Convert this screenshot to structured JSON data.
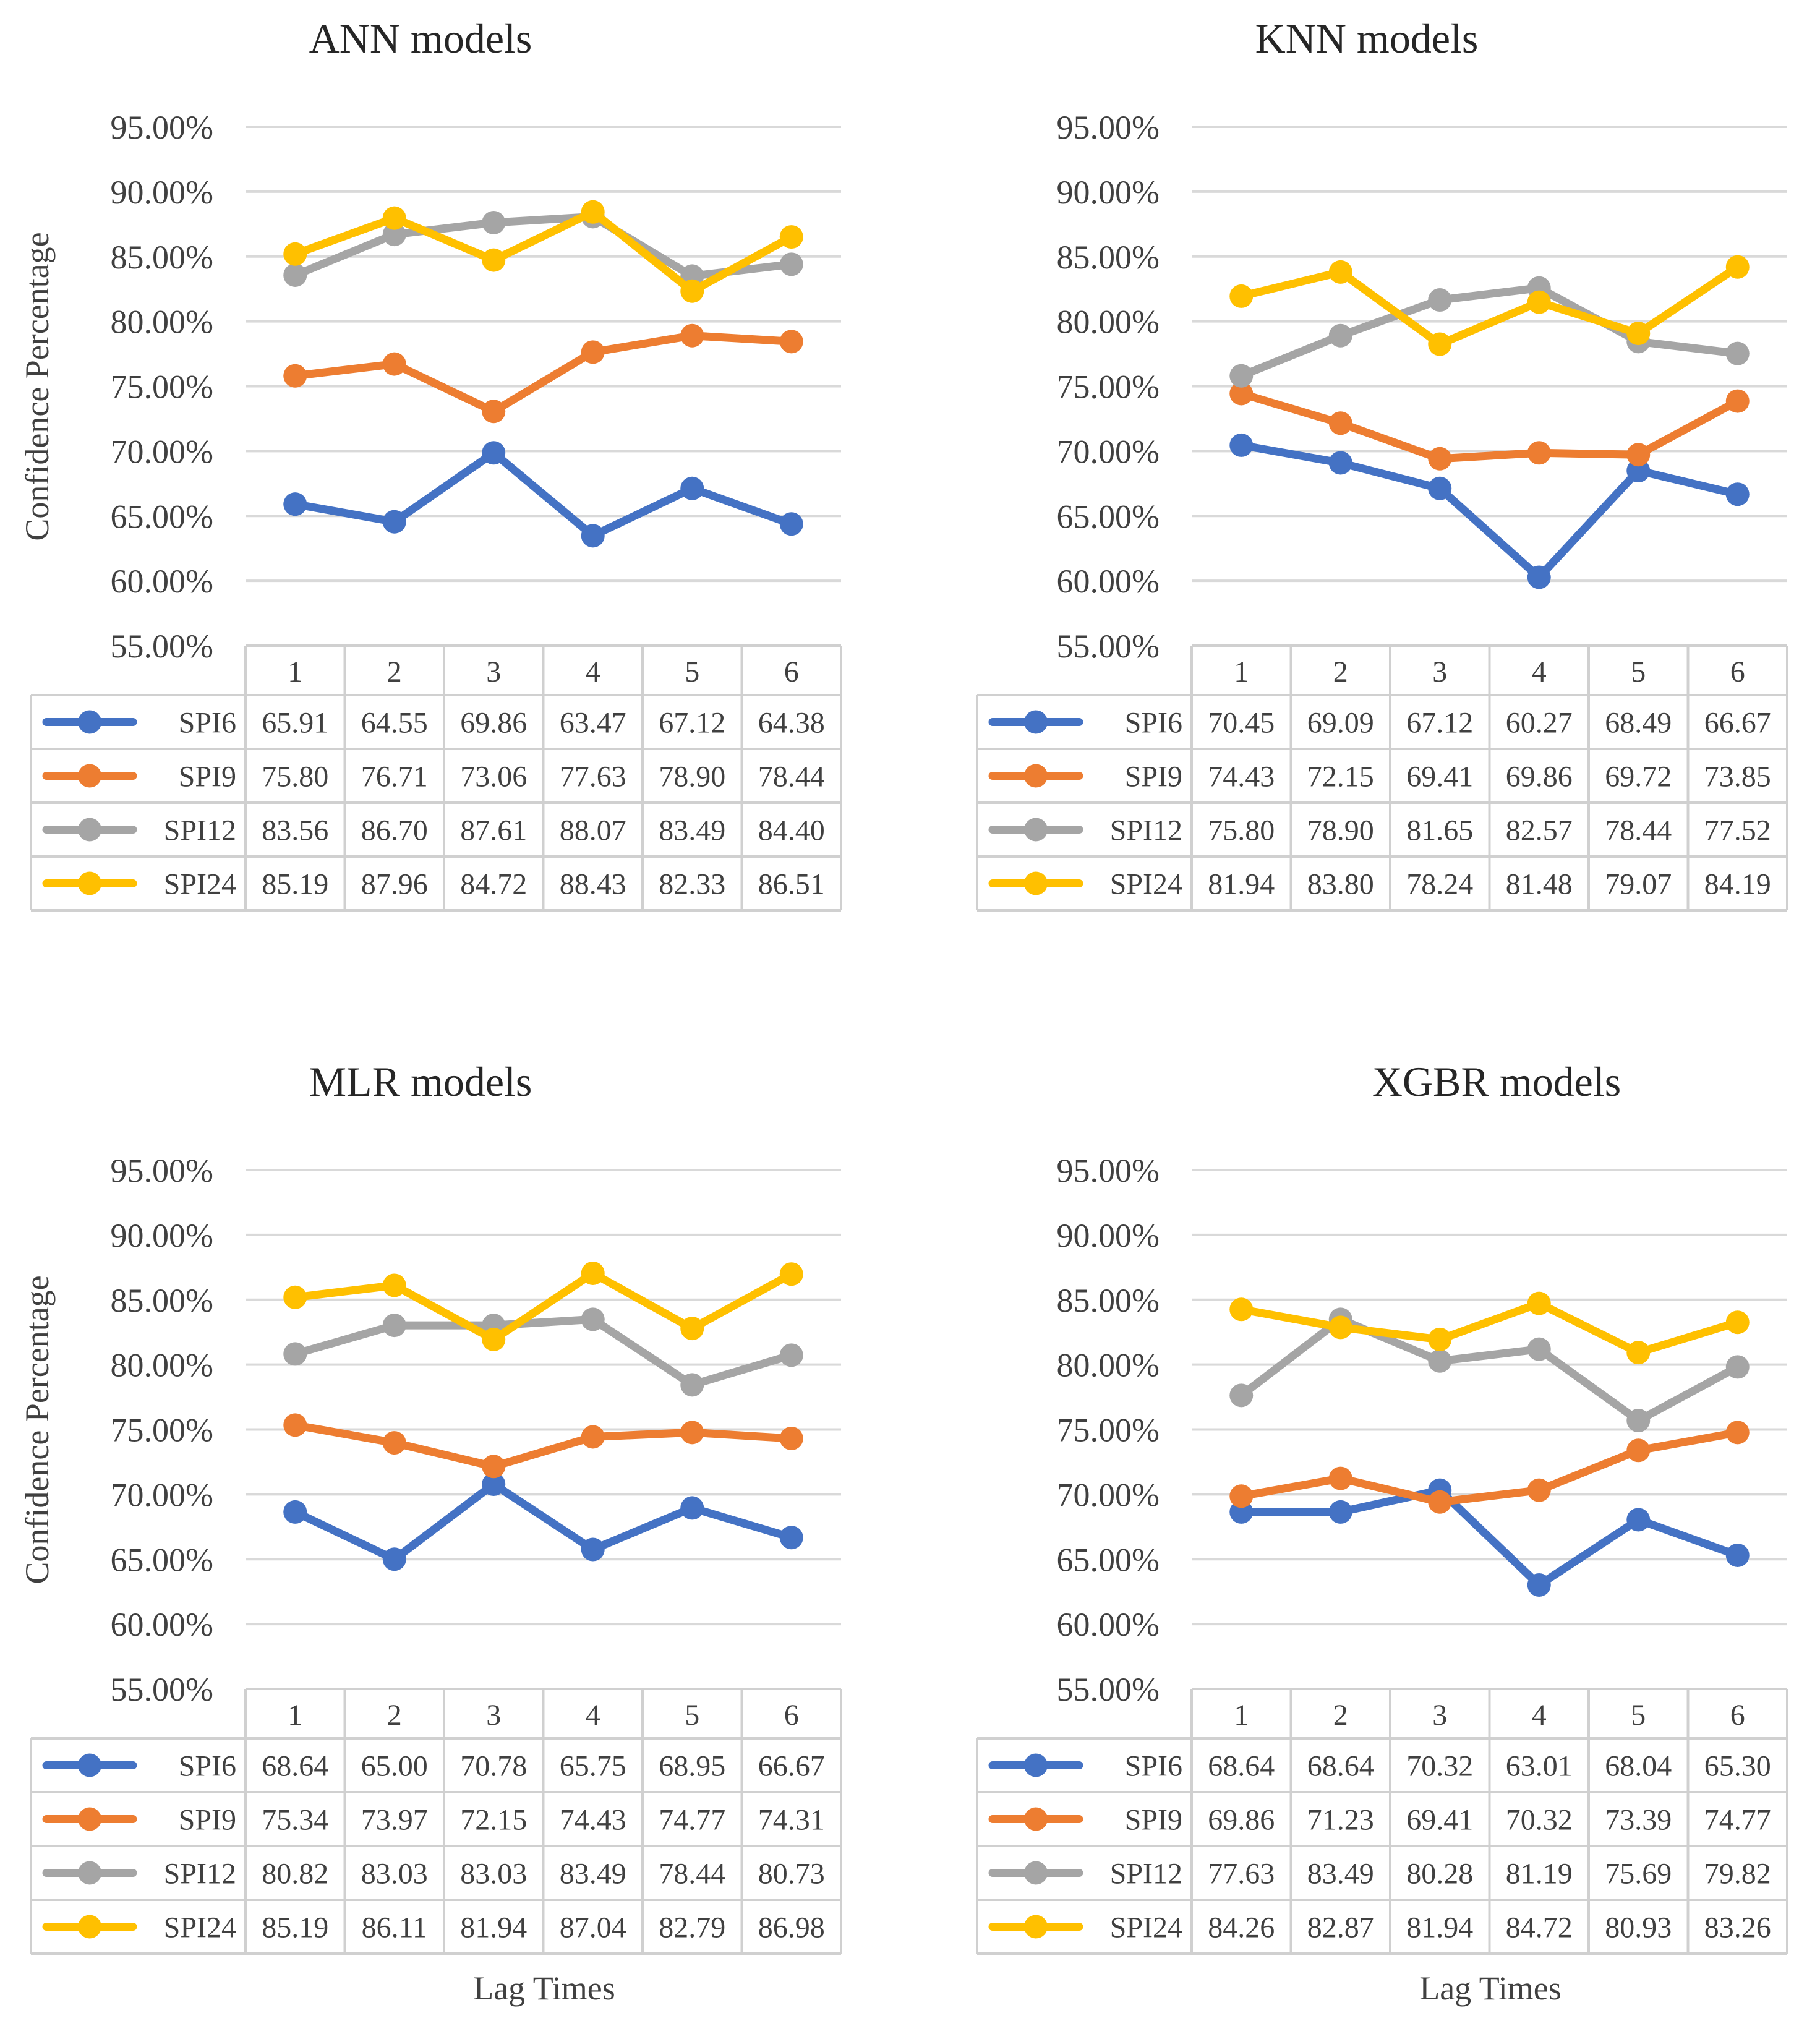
{
  "chart_data": [
    {
      "type": "line",
      "title": "ANN models",
      "ylabel": "Confidence Percentage",
      "xlabel": "",
      "ylim": [
        55,
        95
      ],
      "yticks": [
        "95.00%",
        "90.00%",
        "85.00%",
        "80.00%",
        "75.00%",
        "70.00%",
        "65.00%",
        "60.00%",
        "55.00%"
      ],
      "categories": [
        "1",
        "2",
        "3",
        "4",
        "5",
        "6"
      ],
      "series": [
        {
          "name": "SPI6",
          "color": "#4472C4",
          "values": [
            65.91,
            64.55,
            69.86,
            63.47,
            67.12,
            64.38
          ],
          "labels": [
            "65.91",
            "64.55",
            "69.86",
            "63.47",
            "67.12",
            "64.38"
          ]
        },
        {
          "name": "SPI9",
          "color": "#ED7D31",
          "values": [
            75.8,
            76.71,
            73.06,
            77.63,
            78.9,
            78.44
          ],
          "labels": [
            "75.80",
            "76.71",
            "73.06",
            "77.63",
            "78.90",
            "78.44"
          ]
        },
        {
          "name": "SPI12",
          "color": "#A5A5A5",
          "values": [
            83.56,
            86.7,
            87.61,
            88.07,
            83.49,
            84.4
          ],
          "labels": [
            "83.56",
            "86.70",
            "87.61",
            "88.07",
            "83.49",
            "84.40"
          ]
        },
        {
          "name": "SPI24",
          "color": "#FFC000",
          "values": [
            85.19,
            87.96,
            84.72,
            88.43,
            82.33,
            86.51
          ],
          "labels": [
            "85.19",
            "87.96",
            "84.72",
            "88.43",
            "82.33",
            "86.51"
          ]
        }
      ]
    },
    {
      "type": "line",
      "title": "KNN models",
      "ylabel": "",
      "xlabel": "",
      "ylim": [
        55,
        95
      ],
      "yticks": [
        "95.00%",
        "90.00%",
        "85.00%",
        "80.00%",
        "75.00%",
        "70.00%",
        "65.00%",
        "60.00%",
        "55.00%"
      ],
      "categories": [
        "1",
        "2",
        "3",
        "4",
        "5",
        "6"
      ],
      "series": [
        {
          "name": "SPI6",
          "color": "#4472C4",
          "values": [
            70.45,
            69.09,
            67.12,
            60.27,
            68.49,
            66.67
          ],
          "labels": [
            "70.45",
            "69.09",
            "67.12",
            "60.27",
            "68.49",
            "66.67"
          ]
        },
        {
          "name": "SPI9",
          "color": "#ED7D31",
          "values": [
            74.43,
            72.15,
            69.41,
            69.86,
            69.72,
            73.85
          ],
          "labels": [
            "74.43",
            "72.15",
            "69.41",
            "69.86",
            "69.72",
            "73.85"
          ]
        },
        {
          "name": "SPI12",
          "color": "#A5A5A5",
          "values": [
            75.8,
            78.9,
            81.65,
            82.57,
            78.44,
            77.52
          ],
          "labels": [
            "75.80",
            "78.90",
            "81.65",
            "82.57",
            "78.44",
            "77.52"
          ]
        },
        {
          "name": "SPI24",
          "color": "#FFC000",
          "values": [
            81.94,
            83.8,
            78.24,
            81.48,
            79.07,
            84.19
          ],
          "labels": [
            "81.94",
            "83.80",
            "78.24",
            "81.48",
            "79.07",
            "84.19"
          ]
        }
      ]
    },
    {
      "type": "line",
      "title": "MLR models",
      "ylabel": "Confidence Percentage",
      "xlabel": "Lag Times",
      "ylim": [
        55,
        95
      ],
      "yticks": [
        "95.00%",
        "90.00%",
        "85.00%",
        "80.00%",
        "75.00%",
        "70.00%",
        "65.00%",
        "60.00%",
        "55.00%"
      ],
      "categories": [
        "1",
        "2",
        "3",
        "4",
        "5",
        "6"
      ],
      "series": [
        {
          "name": "SPI6",
          "color": "#4472C4",
          "values": [
            68.64,
            65.0,
            70.78,
            65.75,
            68.95,
            66.67
          ],
          "labels": [
            "68.64",
            "65.00",
            "70.78",
            "65.75",
            "68.95",
            "66.67"
          ]
        },
        {
          "name": "SPI9",
          "color": "#ED7D31",
          "values": [
            75.34,
            73.97,
            72.15,
            74.43,
            74.77,
            74.31
          ],
          "labels": [
            "75.34",
            "73.97",
            "72.15",
            "74.43",
            "74.77",
            "74.31"
          ]
        },
        {
          "name": "SPI12",
          "color": "#A5A5A5",
          "values": [
            80.82,
            83.03,
            83.03,
            83.49,
            78.44,
            80.73
          ],
          "labels": [
            "80.82",
            "83.03",
            "83.03",
            "83.49",
            "78.44",
            "80.73"
          ]
        },
        {
          "name": "SPI24",
          "color": "#FFC000",
          "values": [
            85.19,
            86.11,
            81.94,
            87.04,
            82.79,
            86.98
          ],
          "labels": [
            "85.19",
            "86.11",
            "81.94",
            "87.04",
            "82.79",
            "86.98"
          ]
        }
      ]
    },
    {
      "type": "line",
      "title": "XGBR models",
      "ylabel": "",
      "xlabel": "Lag Times",
      "ylim": [
        55,
        95
      ],
      "yticks": [
        "95.00%",
        "90.00%",
        "85.00%",
        "80.00%",
        "75.00%",
        "70.00%",
        "65.00%",
        "60.00%",
        "55.00%"
      ],
      "categories": [
        "1",
        "2",
        "3",
        "4",
        "5",
        "6"
      ],
      "series": [
        {
          "name": "SPI6",
          "color": "#4472C4",
          "values": [
            68.64,
            68.64,
            70.32,
            63.01,
            68.04,
            65.3
          ],
          "labels": [
            "68.64",
            "68.64",
            "70.32",
            "63.01",
            "68.04",
            "65.30"
          ]
        },
        {
          "name": "SPI9",
          "color": "#ED7D31",
          "values": [
            69.86,
            71.23,
            69.41,
            70.32,
            73.39,
            74.77
          ],
          "labels": [
            "69.86",
            "71.23",
            "69.41",
            "70.32",
            "73.39",
            "74.77"
          ]
        },
        {
          "name": "SPI12",
          "color": "#A5A5A5",
          "values": [
            77.63,
            83.49,
            80.28,
            81.19,
            75.69,
            79.82
          ],
          "labels": [
            "77.63",
            "83.49",
            "80.28",
            "81.19",
            "75.69",
            "79.82"
          ]
        },
        {
          "name": "SPI24",
          "color": "#FFC000",
          "values": [
            84.26,
            82.87,
            81.94,
            84.72,
            80.93,
            83.26
          ],
          "labels": [
            "84.26",
            "82.87",
            "81.94",
            "84.72",
            "80.93",
            "83.26"
          ]
        }
      ]
    }
  ]
}
